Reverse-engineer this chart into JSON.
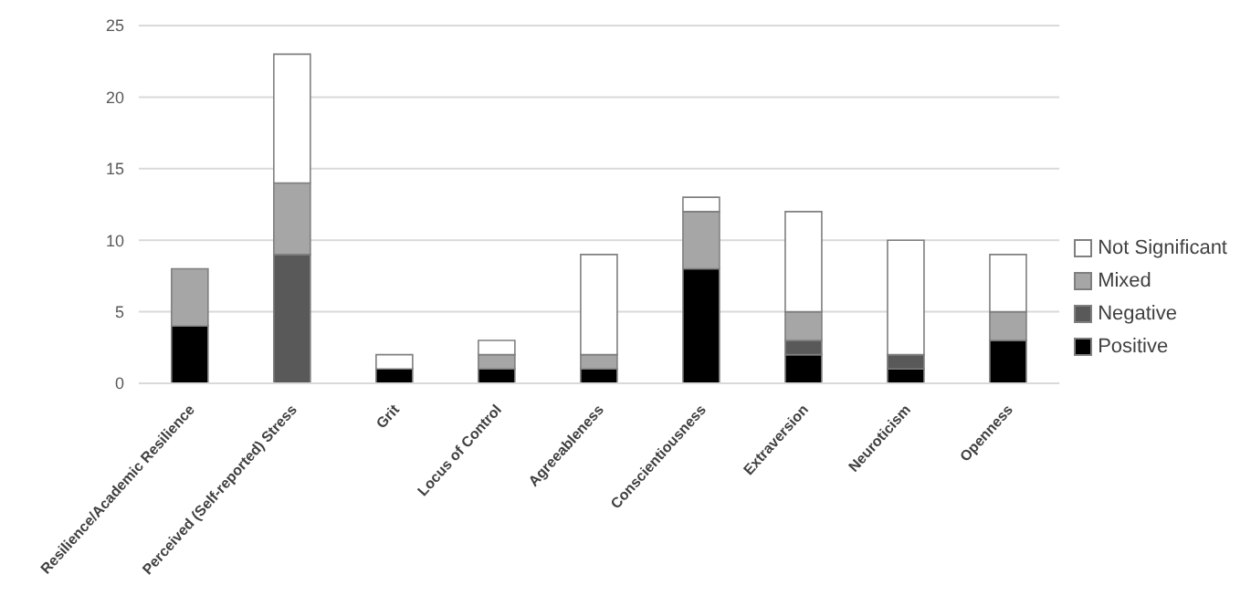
{
  "chart_data": {
    "type": "bar",
    "stacked": true,
    "categories": [
      "Resilience/Academic Resilience",
      "Perceived (Self-reported) Stress",
      "Grit",
      "Locus of Control",
      "Agreeableness",
      "Conscientiousness",
      "Extraversion",
      "Neuroticism",
      "Openness"
    ],
    "series": [
      {
        "name": "Positive",
        "color": "#000000",
        "values": [
          4,
          0,
          1,
          1,
          1,
          8,
          2,
          1,
          3
        ]
      },
      {
        "name": "Negative",
        "color": "#595959",
        "values": [
          0,
          9,
          0,
          0,
          0,
          0,
          1,
          1,
          0
        ]
      },
      {
        "name": "Mixed",
        "color": "#a6a6a6",
        "values": [
          4,
          5,
          0,
          1,
          1,
          4,
          2,
          0,
          2
        ]
      },
      {
        "name": "Not Significant",
        "color": "#ffffff",
        "values": [
          0,
          9,
          1,
          1,
          7,
          1,
          7,
          8,
          4
        ]
      }
    ],
    "ylim": [
      0,
      25
    ],
    "yticks": [
      0,
      5,
      10,
      15,
      20,
      25
    ],
    "grid": "y",
    "legend": "right"
  }
}
